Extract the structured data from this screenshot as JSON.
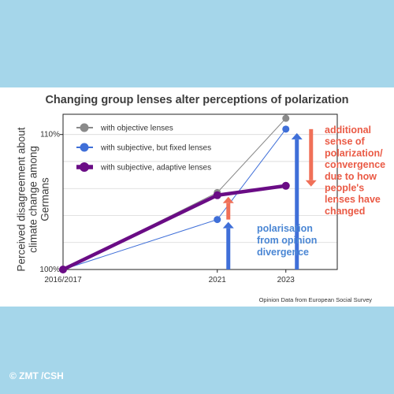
{
  "copyright": "© ZMT /CSH",
  "source": "Opinion Data from European Social Survey",
  "annotations": {
    "divergence": [
      "polarisation",
      "from opinion",
      "divergence"
    ],
    "lens_change": [
      "additional",
      "sense of",
      "polarization/",
      "convergence",
      "due to how",
      "people's",
      "lenses have",
      "changed"
    ]
  },
  "colors": {
    "objective": "#8a8a8a",
    "fixed": "#3f6fd8",
    "adaptive": "#6a0c85",
    "arrow_blue": "#3f6fd8",
    "arrow_red": "#f07058",
    "annotation_blue": "#4a86d4",
    "annotation_red": "#ea5a45"
  },
  "chart_data": {
    "type": "line",
    "title": "Changing group lenses alter perceptions of polarization",
    "xlabel": "",
    "ylabel": "Perceived disagreement about climate change among Germans",
    "x": [
      "2016/2017",
      "2021",
      "2023"
    ],
    "x_positions": [
      2016.5,
      2021,
      2023
    ],
    "xlim": [
      2016.5,
      2024.5
    ],
    "y_ticks": [
      {
        "value": 100,
        "label": "100%"
      },
      {
        "value": 110,
        "label": "110%"
      }
    ],
    "ylim": [
      100,
      111.5
    ],
    "grid": true,
    "legend": "top-left",
    "series": [
      {
        "name": "with objective lenses",
        "values": [
          100,
          105.7,
          111.2
        ]
      },
      {
        "name": "with subjective, but fixed lenses",
        "values": [
          100,
          103.7,
          110.4
        ]
      },
      {
        "name": "with subjective, adaptive lenses",
        "values": [
          100,
          105.5,
          106.2
        ]
      }
    ]
  }
}
